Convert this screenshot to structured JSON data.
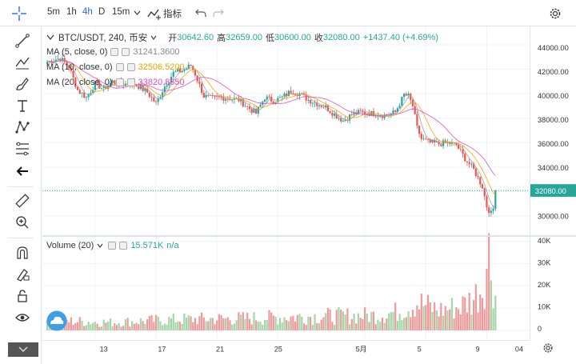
{
  "toolbar": {
    "timeframes": [
      "5m",
      "1h",
      "4h",
      "D",
      "15m"
    ],
    "active_timeframe": "4h",
    "indicators_label": "指标"
  },
  "legend": {
    "symbol": "BTC/USDT, 240, 币安",
    "open_label": "开",
    "open": "30642.60",
    "high_label": "高",
    "high": "32659.00",
    "low_label": "低",
    "low": "30600.00",
    "close_label": "收",
    "close": "32080.00",
    "change": "+1437.40 (+4.69%)",
    "ma": [
      {
        "label": "MA (5, close, 0)",
        "value": "31241.3600",
        "color": "#9e9e9e"
      },
      {
        "label": "MA (10, close, 0)",
        "value": "32506.5200",
        "color": "#f4a300"
      },
      {
        "label": "MA (20, close, 0)",
        "value": "33820.8850",
        "color": "#d94bc3"
      }
    ],
    "volume_label": "Volume (20)",
    "volume_value": "15.571K",
    "volume_extra": "n/a"
  },
  "colors": {
    "up": "#26a69a",
    "down": "#ef5350",
    "up_vol": "#a5d6a7",
    "down_vol": "#ef9a9a",
    "last_price": "#26a69a",
    "accent": "#2962ff"
  },
  "chart_data": {
    "type": "candlestick",
    "price_axis": {
      "ticks": [
        44000,
        42000,
        40000,
        38000,
        36000,
        34000,
        32000,
        30000
      ],
      "ylim": [
        28500,
        45500
      ]
    },
    "volume_axis": {
      "ticks": [
        0,
        10000,
        20000,
        30000,
        40000
      ],
      "labels": [
        "0",
        "10K",
        "20K",
        "30K",
        "40K"
      ],
      "ylim": [
        0,
        42000
      ]
    },
    "time_axis": {
      "labels": [
        "13",
        "17",
        "21",
        "25",
        "5月",
        "5",
        "9",
        "04"
      ]
    },
    "last_price": {
      "value": 32080,
      "label": "32080.00"
    },
    "anchors": [
      [
        0,
        42600
      ],
      [
        6,
        42900
      ],
      [
        10,
        42200
      ],
      [
        14,
        40300
      ],
      [
        18,
        39700
      ],
      [
        22,
        40800
      ],
      [
        26,
        40400
      ],
      [
        30,
        41000
      ],
      [
        34,
        40700
      ],
      [
        38,
        40900
      ],
      [
        42,
        40600
      ],
      [
        46,
        40100
      ],
      [
        50,
        39200
      ],
      [
        54,
        40600
      ],
      [
        58,
        41700
      ],
      [
        62,
        41900
      ],
      [
        66,
        42300
      ],
      [
        68,
        41600
      ],
      [
        72,
        39800
      ],
      [
        76,
        39600
      ],
      [
        80,
        39700
      ],
      [
        84,
        39600
      ],
      [
        88,
        39500
      ],
      [
        92,
        38900
      ],
      [
        96,
        38400
      ],
      [
        100,
        39700
      ],
      [
        104,
        39400
      ],
      [
        108,
        39700
      ],
      [
        112,
        40200
      ],
      [
        116,
        40000
      ],
      [
        120,
        39500
      ],
      [
        124,
        39200
      ],
      [
        128,
        38900
      ],
      [
        132,
        38300
      ],
      [
        136,
        37800
      ],
      [
        140,
        38300
      ],
      [
        144,
        38500
      ],
      [
        148,
        38400
      ],
      [
        152,
        38300
      ],
      [
        156,
        38200
      ],
      [
        160,
        38500
      ],
      [
        164,
        39900
      ],
      [
        166,
        39800
      ],
      [
        168,
        39000
      ],
      [
        170,
        37200
      ],
      [
        172,
        36300
      ],
      [
        176,
        36000
      ],
      [
        180,
        35900
      ],
      [
        184,
        36000
      ],
      [
        188,
        35800
      ],
      [
        192,
        34700
      ],
      [
        196,
        33800
      ],
      [
        200,
        32400
      ],
      [
        202,
        30800
      ],
      [
        204,
        30200
      ],
      [
        205,
        30600
      ],
      [
        206,
        32080
      ]
    ],
    "candle_count": 207,
    "volume_profile": [
      [
        0,
        5000
      ],
      [
        30,
        4000
      ],
      [
        60,
        5500
      ],
      [
        90,
        6000
      ],
      [
        120,
        7000
      ],
      [
        150,
        7500
      ],
      [
        160,
        9000
      ],
      [
        170,
        14000
      ],
      [
        180,
        10000
      ],
      [
        190,
        12000
      ],
      [
        196,
        16000
      ],
      [
        200,
        22000
      ],
      [
        203,
        38000
      ],
      [
        205,
        26000
      ],
      [
        206,
        15571
      ]
    ]
  }
}
